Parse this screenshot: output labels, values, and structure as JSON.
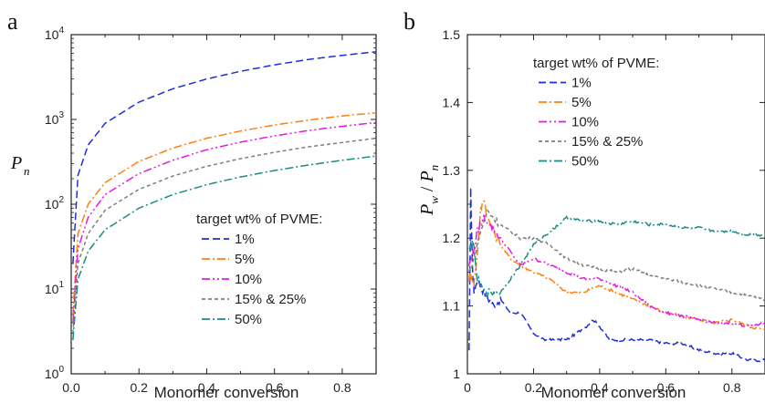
{
  "chart_data": [
    {
      "type": "line",
      "panel_label": "a",
      "title": "",
      "xlabel": "Monomer conversion",
      "ylabel": "P",
      "ylabel_sub": "n",
      "yscale": "log",
      "xlim": [
        0,
        0.9
      ],
      "ylim": [
        1,
        10000
      ],
      "x_ticks": [
        "0.0",
        "0.2",
        "0.4",
        "0.6",
        "0.8"
      ],
      "y_ticks": [
        {
          "base": "10",
          "exp": "0"
        },
        {
          "base": "10",
          "exp": "1"
        },
        {
          "base": "10",
          "exp": "2"
        },
        {
          "base": "10",
          "exp": "3"
        },
        {
          "base": "10",
          "exp": "4"
        }
      ],
      "grid": false,
      "legend_title": "target wt% of PVME:",
      "legend_position": "right-center",
      "series": [
        {
          "name": "1%",
          "color": "#1f2fd6",
          "dash": "dash",
          "x": [
            0.005,
            0.02,
            0.05,
            0.1,
            0.2,
            0.3,
            0.4,
            0.5,
            0.6,
            0.7,
            0.8,
            0.9
          ],
          "y": [
            20,
            220,
            500,
            900,
            1600,
            2300,
            3000,
            3700,
            4400,
            5100,
            5700,
            6300
          ]
        },
        {
          "name": "5%",
          "color": "#ff7f0e",
          "dash": "dashdot",
          "x": [
            0.005,
            0.02,
            0.05,
            0.1,
            0.2,
            0.3,
            0.4,
            0.5,
            0.6,
            0.7,
            0.8,
            0.9
          ],
          "y": [
            5,
            45,
            100,
            180,
            320,
            460,
            600,
            730,
            860,
            980,
            1100,
            1200
          ]
        },
        {
          "name": "10%",
          "color": "#e817e8",
          "dash": "dashdotdot",
          "x": [
            0.005,
            0.02,
            0.05,
            0.1,
            0.2,
            0.3,
            0.4,
            0.5,
            0.6,
            0.7,
            0.8,
            0.9
          ],
          "y": [
            4,
            30,
            70,
            130,
            230,
            330,
            440,
            540,
            640,
            740,
            830,
            920
          ]
        },
        {
          "name": "15% & 25%",
          "color": "#7f7f7f",
          "dash": "short",
          "x": [
            0.005,
            0.02,
            0.05,
            0.1,
            0.2,
            0.3,
            0.4,
            0.5,
            0.6,
            0.7,
            0.8,
            0.9
          ],
          "y": [
            3,
            20,
            45,
            85,
            150,
            215,
            280,
            345,
            410,
            475,
            535,
            600
          ]
        },
        {
          "name": "50%",
          "color": "#1a8c84",
          "dash": "dashdot",
          "x": [
            0.005,
            0.02,
            0.05,
            0.1,
            0.2,
            0.3,
            0.4,
            0.5,
            0.6,
            0.7,
            0.8,
            0.9
          ],
          "y": [
            2.5,
            13,
            28,
            50,
            90,
            130,
            170,
            210,
            250,
            290,
            330,
            370
          ]
        }
      ]
    },
    {
      "type": "line",
      "panel_label": "b",
      "title": "",
      "xlabel": "Monomer conversion",
      "ylabel": "P",
      "ylabel_sub": "w",
      "ylabel_sep": " / ",
      "ylabel2": "P",
      "ylabel2_sub": "n",
      "yscale": "linear",
      "xlim": [
        0,
        0.9
      ],
      "ylim": [
        1.0,
        1.5
      ],
      "x_ticks": [
        "0",
        "0.2",
        "0.4",
        "0.6",
        "0.8"
      ],
      "y_ticks": [
        "1",
        "1.1",
        "1.2",
        "1.3",
        "1.4",
        "1.5"
      ],
      "grid": false,
      "legend_title": "target wt% of PVME:",
      "legend_position": "top-left",
      "series": [
        {
          "name": "1%",
          "color": "#1f2fd6",
          "dash": "dash",
          "x": [
            0.005,
            0.01,
            0.015,
            0.02,
            0.03,
            0.05,
            0.08,
            0.1,
            0.13,
            0.16,
            0.2,
            0.23,
            0.27,
            0.3,
            0.33,
            0.36,
            0.38,
            0.4,
            0.43,
            0.46,
            0.5,
            0.55,
            0.6,
            0.65,
            0.7,
            0.75,
            0.8,
            0.85,
            0.9
          ],
          "y": [
            1.03,
            1.27,
            1.16,
            1.12,
            1.14,
            1.12,
            1.1,
            1.11,
            1.09,
            1.09,
            1.06,
            1.05,
            1.05,
            1.05,
            1.06,
            1.07,
            1.08,
            1.07,
            1.05,
            1.05,
            1.05,
            1.05,
            1.045,
            1.045,
            1.035,
            1.03,
            1.03,
            1.02,
            1.02
          ]
        },
        {
          "name": "5%",
          "color": "#ff7f0e",
          "dash": "dashdot",
          "x": [
            0.005,
            0.01,
            0.02,
            0.03,
            0.04,
            0.05,
            0.06,
            0.08,
            0.1,
            0.13,
            0.16,
            0.2,
            0.25,
            0.3,
            0.35,
            0.4,
            0.45,
            0.5,
            0.55,
            0.6,
            0.65,
            0.7,
            0.75,
            0.8,
            0.85,
            0.9
          ],
          "y": [
            1.14,
            1.15,
            1.13,
            1.18,
            1.24,
            1.26,
            1.23,
            1.21,
            1.19,
            1.17,
            1.16,
            1.15,
            1.14,
            1.12,
            1.12,
            1.13,
            1.12,
            1.11,
            1.1,
            1.09,
            1.085,
            1.08,
            1.075,
            1.08,
            1.07,
            1.065
          ]
        },
        {
          "name": "10%",
          "color": "#e817e8",
          "dash": "dashdotdot",
          "x": [
            0.005,
            0.01,
            0.02,
            0.03,
            0.05,
            0.07,
            0.1,
            0.13,
            0.16,
            0.2,
            0.25,
            0.3,
            0.35,
            0.4,
            0.45,
            0.5,
            0.55,
            0.6,
            0.65,
            0.7,
            0.75,
            0.8,
            0.85,
            0.9
          ],
          "y": [
            1.16,
            1.17,
            1.18,
            1.21,
            1.23,
            1.22,
            1.2,
            1.18,
            1.16,
            1.17,
            1.16,
            1.15,
            1.14,
            1.14,
            1.13,
            1.12,
            1.1,
            1.09,
            1.085,
            1.08,
            1.075,
            1.075,
            1.07,
            1.075
          ]
        },
        {
          "name": "15% & 25%",
          "color": "#7f7f7f",
          "dash": "short",
          "x": [
            0.005,
            0.02,
            0.04,
            0.06,
            0.08,
            0.1,
            0.13,
            0.16,
            0.2,
            0.25,
            0.3,
            0.35,
            0.4,
            0.45,
            0.5,
            0.55,
            0.6,
            0.65,
            0.7,
            0.75,
            0.8,
            0.85,
            0.9
          ],
          "y": [
            1.15,
            1.17,
            1.21,
            1.24,
            1.23,
            1.22,
            1.21,
            1.2,
            1.2,
            1.19,
            1.17,
            1.16,
            1.155,
            1.15,
            1.155,
            1.145,
            1.14,
            1.135,
            1.13,
            1.125,
            1.12,
            1.115,
            1.11
          ]
        },
        {
          "name": "50%",
          "color": "#1a8c84",
          "dash": "dashdot",
          "x": [
            0.005,
            0.015,
            0.03,
            0.05,
            0.08,
            0.1,
            0.13,
            0.16,
            0.2,
            0.25,
            0.3,
            0.35,
            0.4,
            0.45,
            0.5,
            0.55,
            0.6,
            0.65,
            0.7,
            0.75,
            0.8,
            0.85,
            0.9
          ],
          "y": [
            1.18,
            1.2,
            1.14,
            1.12,
            1.12,
            1.12,
            1.14,
            1.16,
            1.19,
            1.21,
            1.23,
            1.225,
            1.225,
            1.22,
            1.225,
            1.22,
            1.22,
            1.215,
            1.215,
            1.21,
            1.21,
            1.205,
            1.205
          ]
        }
      ]
    }
  ]
}
